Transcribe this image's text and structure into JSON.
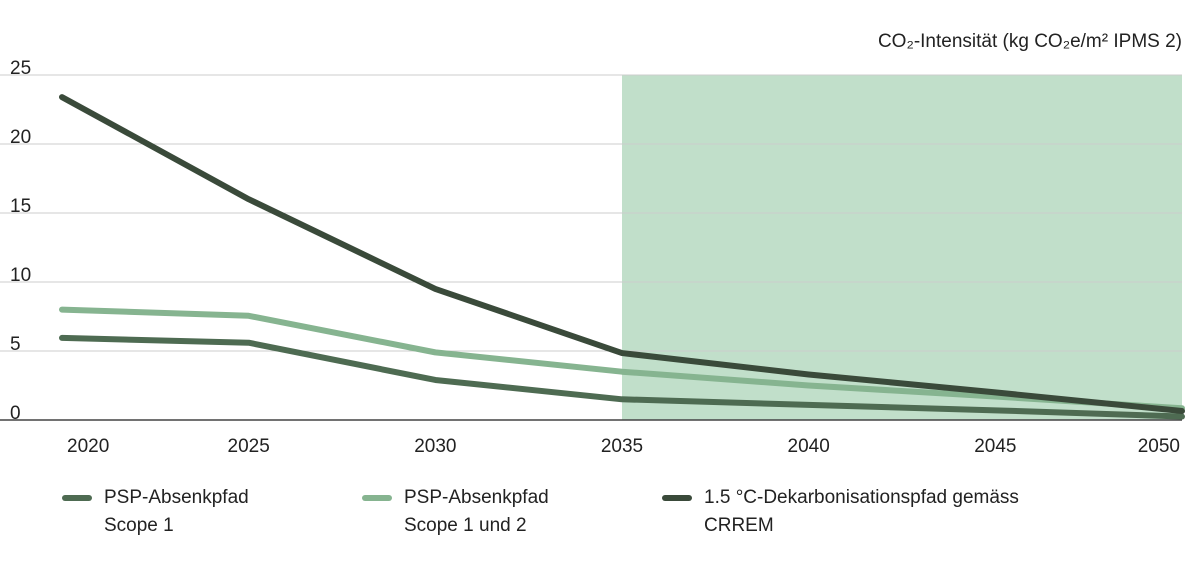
{
  "chart_data": {
    "type": "line",
    "y_label": "CO₂-Intensität (kg CO₂e/m² IPMS 2)",
    "x": [
      2020,
      2025,
      2030,
      2035,
      2040,
      2045,
      2050
    ],
    "series": [
      {
        "name": "PSP-Absenkpfad Scope 1",
        "color": "#4e6b52",
        "values": [
          5.95,
          5.6,
          2.9,
          1.5,
          1.1,
          0.7,
          0.25
        ]
      },
      {
        "name": "PSP-Absenkpfad Scope 1 und 2",
        "color": "#86b490",
        "values": [
          8.0,
          7.55,
          4.9,
          3.5,
          2.5,
          1.7,
          0.85
        ]
      },
      {
        "name": "1.5 °C-Dekarbonisationspfad gemäss CRREM",
        "color": "#3a4a3a",
        "values": [
          23.4,
          16.0,
          9.5,
          4.85,
          3.3,
          2.0,
          0.65
        ]
      }
    ],
    "highlight_x": [
      2035,
      2050
    ],
    "highlight_color": "#c1dfca",
    "xlim": [
      2020,
      2050
    ],
    "xticks": [
      2020,
      2025,
      2030,
      2035,
      2040,
      2045,
      2050
    ],
    "ylim": [
      0,
      25
    ],
    "yticks": [
      0,
      5,
      10,
      15,
      20,
      25
    ],
    "grid": true,
    "legend": "bottom"
  }
}
